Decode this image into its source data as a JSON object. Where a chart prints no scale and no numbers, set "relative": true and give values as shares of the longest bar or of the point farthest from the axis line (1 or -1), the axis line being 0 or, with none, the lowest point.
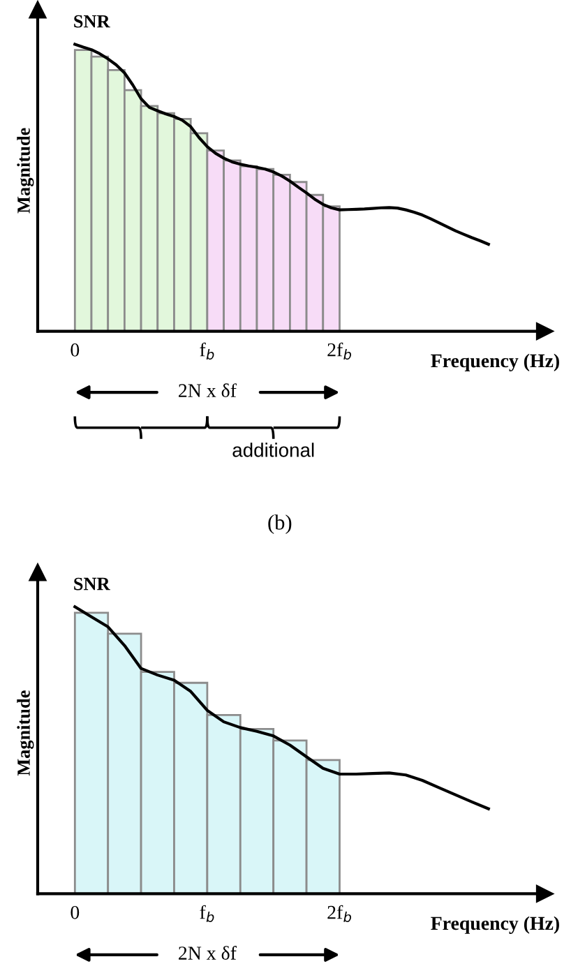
{
  "chart_data": [
    {
      "type": "bar",
      "relative": true,
      "title": "SNR",
      "xlabel": "Frequency (Hz)",
      "ylabel": "Magnitude",
      "categories": [
        "0",
        null,
        null,
        null,
        null,
        null,
        null,
        null,
        null,
        null,
        null,
        null,
        null,
        null,
        null,
        null,
        "f$_{b}$",
        null,
        null,
        null,
        null,
        null,
        null,
        null,
        null,
        null,
        null,
        null,
        null,
        null,
        null,
        null,
        "2f$_{b}$",
        null,
        null,
        null,
        null,
        null,
        null,
        null,
        null,
        null,
        null,
        null,
        null,
        null,
        null,
        null,
        null,
        null,
        null
      ],
      "annotations": [
        "2N x δf",
        "additional",
        "(b)"
      ],
      "series": [
        {
          "color": "#e2f7dc",
          "values": [
            null,
            0.98,
            null,
            0.957,
            null,
            0.91,
            null,
            0.84,
            null,
            0.785,
            null,
            0.76,
            null,
            0.74,
            null,
            0.69,
            null,
            null,
            null,
            null,
            null,
            null,
            null,
            null,
            null,
            null,
            null,
            null,
            null,
            null,
            null,
            null,
            null,
            null,
            null,
            null,
            null,
            null,
            null,
            null,
            null,
            null,
            null,
            null,
            null,
            null,
            null,
            null,
            null,
            null,
            null
          ]
        },
        {
          "color": "#f7dcf7",
          "values": [
            null,
            null,
            null,
            null,
            null,
            null,
            null,
            null,
            null,
            null,
            null,
            null,
            null,
            null,
            null,
            null,
            null,
            0.63,
            null,
            0.595,
            null,
            0.575,
            null,
            0.565,
            null,
            0.545,
            null,
            0.52,
            null,
            0.475,
            null,
            0.435,
            null,
            null,
            null,
            null,
            null,
            null,
            null,
            null,
            null,
            null,
            null,
            null,
            null,
            null,
            null,
            null,
            null,
            null,
            null
          ]
        },
        {
          "type": "line",
          "color": "#000000",
          "values": [
            1.0,
            0.99,
            0.981,
            0.967,
            0.949,
            0.928,
            0.9,
            0.858,
            0.81,
            0.78,
            0.768,
            0.757,
            0.748,
            0.735,
            0.713,
            0.675,
            0.643,
            0.62,
            0.603,
            0.59,
            0.582,
            0.576,
            0.571,
            0.565,
            0.555,
            0.541,
            0.523,
            0.502,
            0.482,
            0.46,
            0.442,
            0.43,
            0.423,
            0.424,
            0.425,
            0.426,
            0.428,
            0.43,
            0.431,
            0.429,
            0.423,
            0.415,
            0.405,
            0.392,
            0.378,
            0.364,
            0.35,
            0.338,
            0.326,
            0.315,
            0.303
          ]
        }
      ]
    },
    {
      "type": "bar",
      "relative": true,
      "title": "SNR",
      "xlabel": "Frequency (Hz)",
      "ylabel": "Magnitude",
      "annotations": [
        "2N x δf"
      ],
      "categories": [
        "0",
        null,
        null,
        null,
        null,
        null,
        null,
        null,
        "f$_{b}$",
        null,
        null,
        null,
        null,
        null,
        null,
        null,
        "2f$_{b}$",
        null,
        null,
        null,
        null,
        null,
        null,
        null,
        null,
        null
      ],
      "series": [
        {
          "color": "#d9f6f8",
          "values": [
            null,
            0.979,
            null,
            0.906,
            null,
            0.773,
            null,
            0.735,
            null,
            0.623,
            null,
            0.574,
            null,
            0.534,
            null,
            0.466,
            null,
            null,
            null,
            null,
            null,
            null,
            null,
            null,
            null,
            null
          ]
        },
        {
          "type": "line",
          "color": "#000000",
          "values": [
            1.0,
            0.965,
            0.93,
            0.865,
            0.785,
            0.762,
            0.744,
            0.705,
            0.639,
            0.599,
            0.579,
            0.566,
            0.55,
            0.518,
            0.477,
            0.437,
            0.417,
            0.417,
            0.419,
            0.421,
            0.414,
            0.395,
            0.37,
            0.345,
            0.32,
            0.296
          ]
        }
      ]
    }
  ]
}
